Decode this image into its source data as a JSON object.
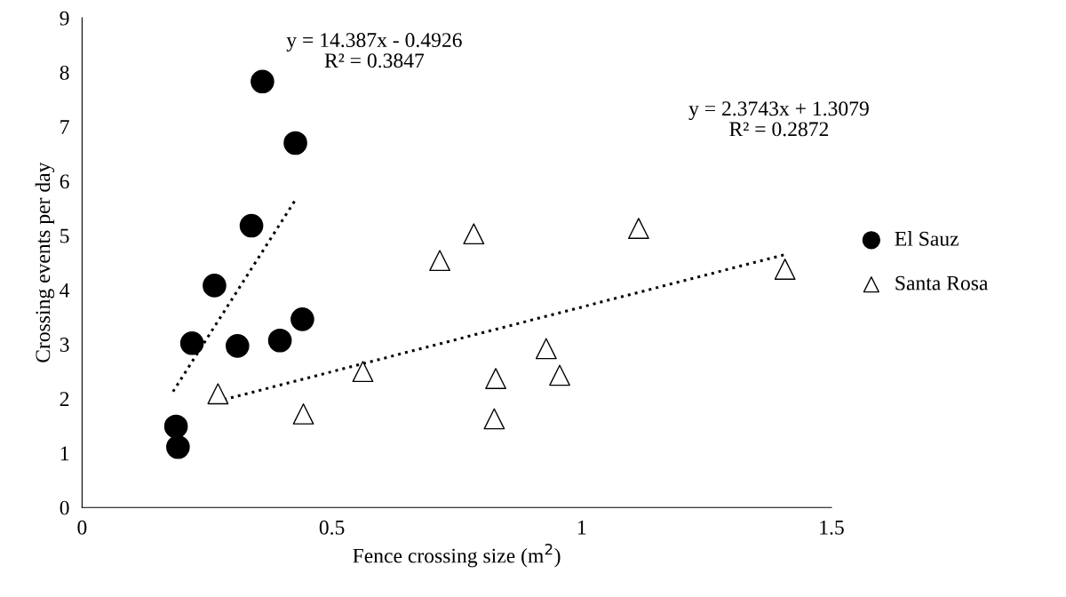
{
  "chart_data": {
    "type": "scatter",
    "xlabel": "Fence crossing size (m$^{2}$)",
    "ylabel": "Crossing events per day",
    "xlim": [
      0,
      1.5
    ],
    "xticks": [
      0,
      0.5,
      1,
      1.5
    ],
    "ylim": [
      0,
      9
    ],
    "yticks": [
      0,
      1,
      2,
      3,
      4,
      5,
      6,
      7,
      8,
      9
    ],
    "grid": false,
    "legend": "right",
    "series": [
      {
        "name": "El Sauz",
        "marker": "circle",
        "color": "#000000",
        "x": [
          0.188,
          0.192,
          0.22,
          0.265,
          0.311,
          0.339,
          0.361,
          0.396,
          0.427,
          0.441
        ],
        "values": [
          1.49,
          1.11,
          3.02,
          4.08,
          2.97,
          5.18,
          7.83,
          3.07,
          6.7,
          3.46
        ]
      },
      {
        "name": "Santa Rosa",
        "marker": "triangle",
        "color": "#ffffff",
        "x": [
          0.272,
          0.443,
          0.562,
          0.716,
          0.784,
          0.828,
          0.825,
          0.929,
          0.956,
          1.114,
          1.407
        ],
        "values": [
          2.09,
          1.72,
          2.5,
          4.54,
          5.03,
          2.37,
          1.63,
          2.92,
          2.43,
          5.13,
          4.38
        ]
      },
      {
        "type": "line",
        "line_style": "dotted",
        "color": "#000000",
        "x": [
          0.182,
          0.426
        ],
        "values": [
          2.13,
          5.64
        ]
      },
      {
        "type": "line",
        "line_style": "dotted",
        "color": "#000000",
        "x": [
          0.27,
          1.407
        ],
        "values": [
          1.95,
          4.65
        ]
      }
    ],
    "annotations": [
      "y = 14.387x - 0.4926\nR² = 0.3847",
      "y = 2.3743x + 1.3079\nR² = 0.2872"
    ]
  }
}
